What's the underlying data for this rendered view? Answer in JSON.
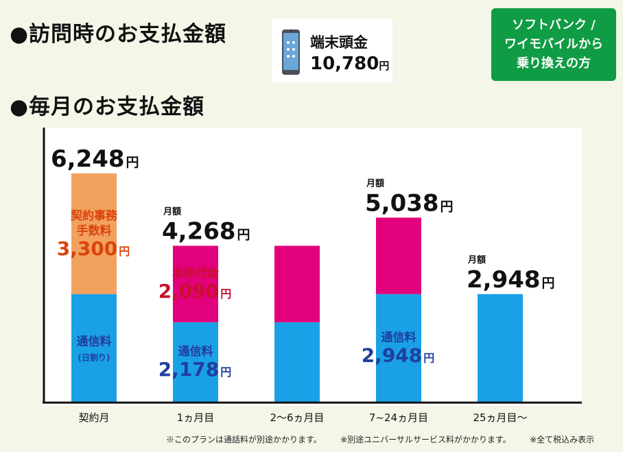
{
  "headings": {
    "visit": "●訪問時のお支払金額",
    "monthly": "●毎月のお支払金額"
  },
  "device": {
    "label": "端末頭金",
    "price": "10,780",
    "yen": "円"
  },
  "badge": {
    "lines": [
      "ソフトバンク /",
      "ワイモバイルから",
      "乗り換えの方"
    ]
  },
  "footnotes": [
    "※このプランは通話料が別途かかります。",
    "※別途ユニバーサルサービス料がかかります。",
    "※全て税込み表示"
  ],
  "colors": {
    "communication": "#1aa0e6",
    "fee": "#f2a15e",
    "device": "#e2007c",
    "fee_text": "#d9440f",
    "device_text": "#c8102e",
    "comm_text": "#1f3f9e",
    "badge": "#109c44"
  },
  "chart_data": {
    "type": "bar",
    "stacked": true,
    "categories": [
      "契約月",
      "1ヵ月目",
      "2～6ヵ月目",
      "7~24ヵ月目",
      "25ヵ月目～"
    ],
    "series": [
      {
        "name": "通信料",
        "values": [
          2948,
          2178,
          2178,
          2948,
          2948
        ]
      },
      {
        "name": "契約事務手数料",
        "values": [
          3300,
          0,
          0,
          0,
          0
        ]
      },
      {
        "name": "本体代金",
        "values": [
          0,
          2090,
          2090,
          2090,
          0
        ]
      }
    ],
    "ylim": [
      0,
      7500
    ],
    "yen": "円",
    "totals": [
      {
        "index": 0,
        "prefix": "",
        "value": "6,248"
      },
      {
        "index": 1,
        "prefix": "月額",
        "value": "4,268"
      },
      {
        "index": 3,
        "prefix": "月額",
        "value": "5,038"
      },
      {
        "index": 4,
        "prefix": "月額",
        "value": "2,948"
      }
    ],
    "annotations": [
      {
        "index": 0,
        "series": 1,
        "lines": [
          "契約事務",
          "手数料"
        ],
        "value": "3,300"
      },
      {
        "index": 0,
        "series": 0,
        "lines": [
          "通信料",
          "(日割り)"
        ],
        "value": ""
      },
      {
        "index": 1,
        "series": 2,
        "lines": [
          "本体代金"
        ],
        "value": "2,090"
      },
      {
        "index": 1,
        "series": 0,
        "lines": [
          "通信料"
        ],
        "value": "2,178"
      },
      {
        "index": 3,
        "series": 0,
        "lines": [
          "通信料"
        ],
        "value": "2,948"
      }
    ]
  }
}
